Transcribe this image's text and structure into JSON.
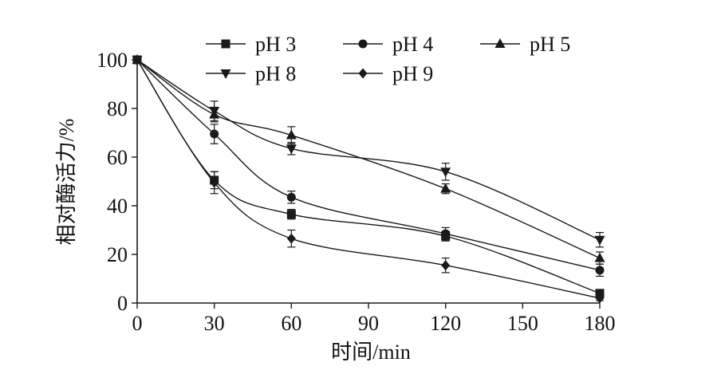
{
  "chart_data": {
    "type": "line",
    "xlabel": "时间/min",
    "ylabel": "相对酶活力/%",
    "xlim": [
      0,
      180
    ],
    "ylim": [
      0,
      100
    ],
    "xticks": [
      0,
      30,
      60,
      90,
      120,
      150,
      180
    ],
    "yticks": [
      0,
      20,
      40,
      60,
      80,
      100
    ],
    "grid": false,
    "legend_position": "top",
    "x": [
      0,
      30,
      60,
      120,
      180
    ],
    "series": [
      {
        "name": "pH 3",
        "marker": "square",
        "values": [
          100,
          50.5,
          36.5,
          27.5,
          4
        ],
        "errors": [
          0,
          3.5,
          2,
          2,
          1.5
        ]
      },
      {
        "name": "pH 4",
        "marker": "circle",
        "values": [
          100,
          69.5,
          43.5,
          28.5,
          13.5
        ],
        "errors": [
          0,
          4,
          2.5,
          2.5,
          2.5
        ]
      },
      {
        "name": "pH 5",
        "marker": "triangle-up",
        "values": [
          100,
          77.5,
          69,
          47,
          18.5
        ],
        "errors": [
          0,
          3,
          3.5,
          2,
          2.5
        ]
      },
      {
        "name": "pH 8",
        "marker": "triangle-down",
        "values": [
          100,
          79,
          63.5,
          54,
          26
        ],
        "errors": [
          0,
          4,
          2.5,
          3.5,
          3
        ]
      },
      {
        "name": "pH 9",
        "marker": "diamond",
        "values": [
          100,
          49.5,
          26.5,
          15.5,
          2
        ],
        "errors": [
          0,
          4.5,
          3.5,
          3,
          1
        ]
      }
    ],
    "colors": {
      "line": "#1a1a1a",
      "background": "#ffffff"
    }
  }
}
